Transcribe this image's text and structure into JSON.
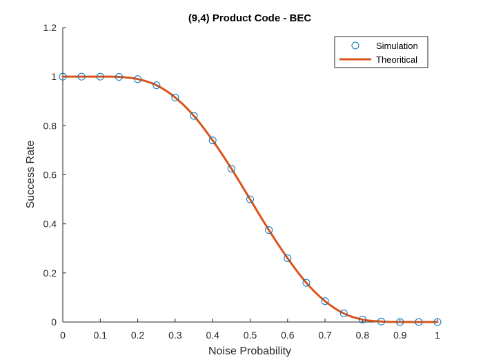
{
  "chart_data": {
    "type": "line",
    "title": "(9,4) Product Code - BEC",
    "xlabel": "Noise Probability",
    "ylabel": "Success Rate",
    "xlim": [
      0,
      1
    ],
    "ylim": [
      0,
      1.2
    ],
    "xticks": [
      0,
      0.1,
      0.2,
      0.3,
      0.4,
      0.5,
      0.6,
      0.7,
      0.8,
      0.9,
      1
    ],
    "yticks": [
      0,
      0.2,
      0.4,
      0.6,
      0.8,
      1,
      1.2
    ],
    "xtick_labels": [
      "0",
      "0.1",
      "0.2",
      "0.3",
      "0.4",
      "0.5",
      "0.6",
      "0.7",
      "0.8",
      "0.9",
      "1"
    ],
    "ytick_labels": [
      "0",
      "0.2",
      "0.4",
      "0.6",
      "0.8",
      "1",
      "1.2"
    ],
    "grid": false,
    "legend_position": "top-right",
    "series": [
      {
        "name": "Simulation",
        "style": "markers",
        "marker": "circle",
        "color": "#0072BD",
        "x": [
          0,
          0.05,
          0.1,
          0.15,
          0.2,
          0.25,
          0.3,
          0.35,
          0.4,
          0.45,
          0.5,
          0.55,
          0.6,
          0.65,
          0.7,
          0.75,
          0.8,
          0.85,
          0.9,
          0.95,
          1
        ],
        "y": [
          1,
          1,
          1,
          0.999,
          0.99,
          0.965,
          0.915,
          0.84,
          0.74,
          0.625,
          0.5,
          0.375,
          0.26,
          0.16,
          0.085,
          0.035,
          0.01,
          0.002,
          0,
          0,
          0
        ]
      },
      {
        "name": "Theoritical",
        "style": "line",
        "color": "#D95319",
        "x": [
          0,
          0.05,
          0.1,
          0.15,
          0.2,
          0.25,
          0.3,
          0.35,
          0.4,
          0.45,
          0.5,
          0.55,
          0.6,
          0.65,
          0.7,
          0.75,
          0.8,
          0.85,
          0.9,
          0.95,
          1
        ],
        "y": [
          1,
          1,
          1,
          0.999,
          0.99,
          0.965,
          0.915,
          0.84,
          0.74,
          0.625,
          0.5,
          0.375,
          0.26,
          0.16,
          0.085,
          0.035,
          0.01,
          0.002,
          0,
          0,
          0
        ]
      }
    ]
  }
}
